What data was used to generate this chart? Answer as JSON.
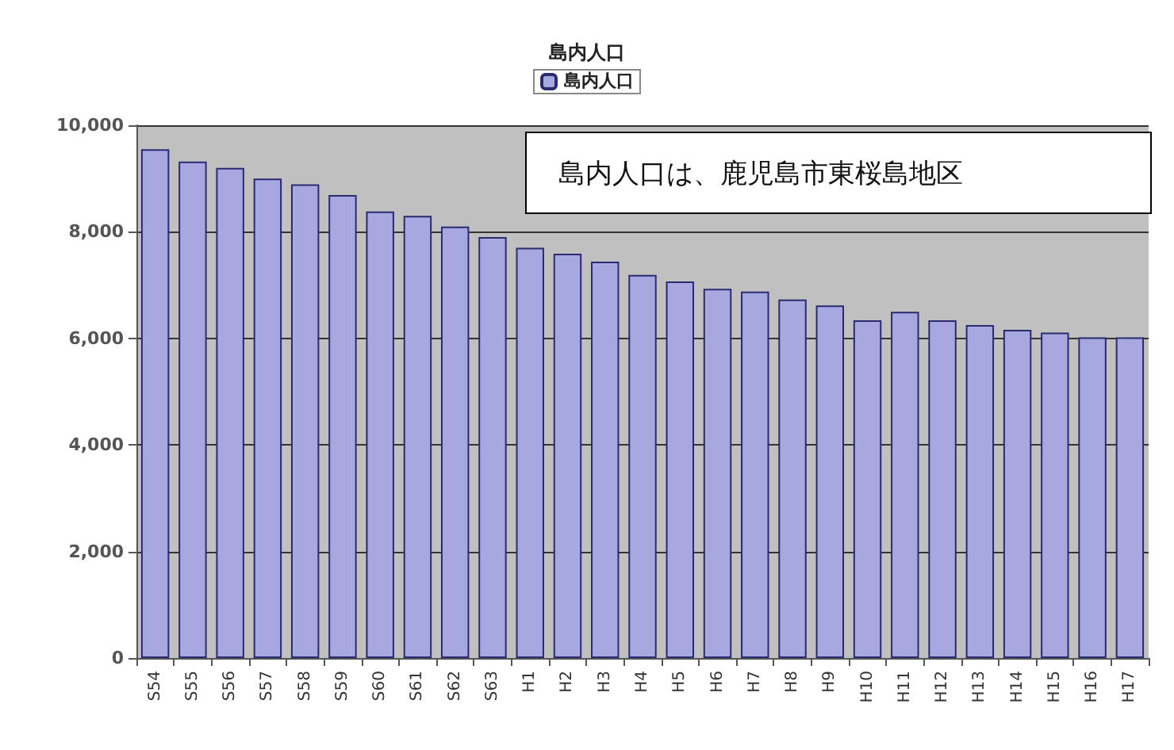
{
  "chart_data": {
    "type": "bar",
    "title": "島内人口",
    "categories": [
      "S54",
      "S55",
      "S56",
      "S57",
      "S58",
      "S59",
      "S60",
      "S61",
      "S62",
      "S63",
      "H1",
      "H2",
      "H3",
      "H4",
      "H5",
      "H6",
      "H7",
      "H8",
      "H9",
      "H10",
      "H11",
      "H12",
      "H13",
      "H14",
      "H15",
      "H16",
      "H17"
    ],
    "series": [
      {
        "name": "島内人口",
        "color": "#a8a8e0",
        "values": [
          9550,
          9320,
          9200,
          9000,
          8890,
          8690,
          8380,
          8300,
          8100,
          7900,
          7700,
          7590,
          7440,
          7190,
          7070,
          6930,
          6880,
          6730,
          6620,
          6340,
          6500,
          6340,
          6250,
          6160,
          6110,
          6020,
          6020
        ]
      }
    ],
    "ylim": [
      0,
      10000
    ],
    "yticks": [
      {
        "value": 0,
        "label": "0"
      },
      {
        "value": 2000,
        "label": "2,000"
      },
      {
        "value": 4000,
        "label": "4,000"
      },
      {
        "value": 6000,
        "label": "6,000"
      },
      {
        "value": 8000,
        "label": "8,000"
      },
      {
        "value": 10000,
        "label": "10,000"
      }
    ],
    "grid": "y",
    "legend": "top",
    "annotations": [
      "島内人口は、鹿児島市東桜島地区"
    ]
  }
}
